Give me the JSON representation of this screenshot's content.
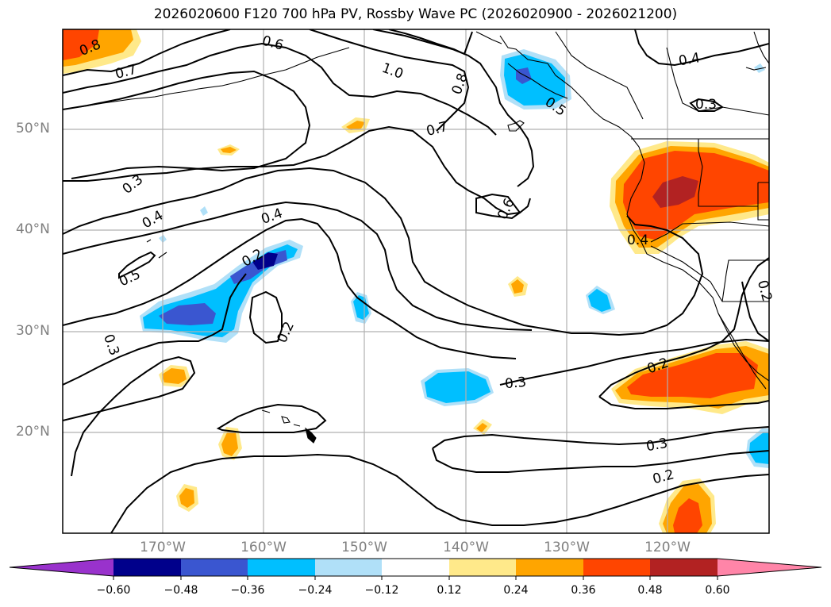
{
  "title": "2026020600 F120 700 hPa PV, Rossby Wave PC (2026020900 - 2026021200)",
  "lat_labels": [
    "50°N",
    "40°N",
    "30°N",
    "20°N"
  ],
  "lon_labels": [
    "170°W",
    "160°W",
    "150°W",
    "140°W",
    "130°W",
    "120°W"
  ],
  "colorbar": {
    "ticks": [
      "−0.60",
      "−0.48",
      "−0.36",
      "−0.24",
      "−0.12",
      "0.12",
      "0.24",
      "0.36",
      "0.48",
      "0.60"
    ],
    "colors": [
      "#9932CC",
      "#00008B",
      "#3A56D0",
      "#00BFFF",
      "#B0E0F8",
      "#FFFFFF",
      "#FFE98A",
      "#FFA500",
      "#FF4500",
      "#B22222",
      "#FF85A8"
    ]
  },
  "contour_labels": [
    "0.8",
    "0.7",
    "0.6",
    "1.0",
    "0.8",
    "0.4",
    "0.3",
    "0.7",
    "0.5",
    "0.3",
    "0.4",
    "0.4",
    "0.6",
    "0.5",
    "0.2",
    "0.2",
    "0.4",
    "0.2",
    "0.3",
    "0.2",
    "0.3",
    "0.3",
    "0.2"
  ],
  "map_colors": {
    "coast": "#000000",
    "grid": "#b0b0b0",
    "frame": "#000000"
  }
}
